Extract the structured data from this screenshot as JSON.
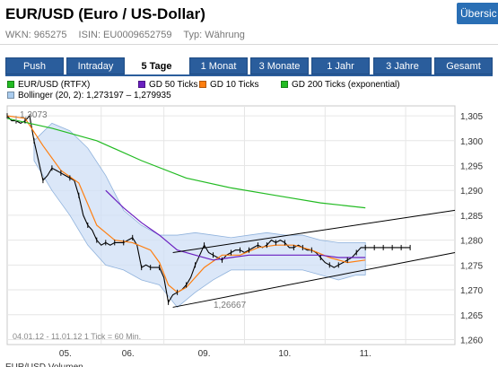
{
  "header": {
    "title": "EUR/USD (Euro / US-Dollar)",
    "overview_button": "Übersic",
    "wkn": "WKN: 965275",
    "isin": "ISIN: EU0009652759",
    "typ": "Typ: Währung"
  },
  "tabs": [
    "Push",
    "Intraday",
    "5 Tage",
    "1 Monat",
    "3 Monate",
    "1 Jahr",
    "3 Jahre",
    "Gesamt"
  ],
  "active_tab": "5 Tage",
  "legend": {
    "items": [
      {
        "label": "EUR/USD (RTFX)",
        "color": "#22bb22"
      },
      {
        "label": "GD 50 Ticks",
        "color": "#6a1fc0"
      },
      {
        "label": "GD 10 Ticks",
        "color": "#ff7f10"
      },
      {
        "label": "GD 200 Ticks (exponential)",
        "color": "#22bb22"
      },
      {
        "label": "Bollinger (20, 2): 1,273197 – 1,279935",
        "color": "#aaccee"
      }
    ]
  },
  "chart_data": {
    "type": "line",
    "xlabel": "",
    "ylabel": "",
    "x_ticks": [
      "05.",
      "06.",
      "09.",
      "10.",
      "11."
    ],
    "y_ticks": [
      "1,305",
      "1,300",
      "1,295",
      "1,290",
      "1,285",
      "1,280",
      "1,275",
      "1,270",
      "1,265",
      "1,260"
    ],
    "ylim": [
      1.259,
      1.307
    ],
    "annotations": {
      "high": "1,3073",
      "low": "1,26667",
      "date_range": "04.01.12 - 11.01.12",
      "tick_info": "1 Tick = 60 Min."
    },
    "bottom_label": "EUR/USD Volumen",
    "grid": true,
    "series": [
      {
        "name": "EUR/USD (RTFX)",
        "color": "#000000",
        "x": [
          0,
          1,
          2,
          3,
          4,
          5,
          6,
          7,
          8,
          9,
          10,
          11,
          12,
          13,
          14,
          15,
          16,
          17,
          18,
          19,
          20,
          21,
          22,
          23,
          24,
          25,
          26,
          27,
          28,
          29,
          30,
          31,
          32,
          33,
          34,
          35,
          36,
          37,
          38,
          39,
          40,
          41,
          42,
          43,
          44,
          45,
          46,
          47,
          48,
          49,
          50,
          51,
          52,
          53,
          54,
          55,
          56,
          57,
          58,
          59,
          60,
          61,
          62,
          63,
          64,
          65,
          66,
          67,
          68,
          69,
          70,
          71,
          72,
          73,
          74,
          75,
          76,
          77,
          78,
          79,
          80,
          81,
          82,
          83,
          84,
          85,
          86,
          87,
          88,
          89,
          90
        ],
        "values": [
          1.305,
          1.304,
          1.304,
          1.3035,
          1.304,
          1.305,
          1.3,
          1.296,
          1.292,
          1.293,
          1.2945,
          1.294,
          1.2935,
          1.293,
          1.2925,
          1.292,
          1.289,
          1.285,
          1.283,
          1.282,
          1.28,
          1.279,
          1.2795,
          1.279,
          1.2795,
          1.2795,
          1.2795,
          1.28,
          1.2805,
          1.279,
          1.2745,
          1.275,
          1.2745,
          1.2745,
          1.2745,
          1.2725,
          1.2675,
          1.269,
          1.2695,
          1.27,
          1.271,
          1.2725,
          1.275,
          1.277,
          1.279,
          1.2775,
          1.277,
          1.2765,
          1.276,
          1.277,
          1.2775,
          1.278,
          1.278,
          1.2775,
          1.278,
          1.2785,
          1.279,
          1.2785,
          1.279,
          1.28,
          1.2795,
          1.28,
          1.2795,
          1.2785,
          1.2785,
          1.279,
          1.2785,
          1.278,
          1.278,
          1.2775,
          1.2765,
          1.2755,
          1.275,
          1.2745,
          1.275,
          1.2755,
          1.276,
          1.2765,
          1.2775,
          1.2785,
          1.2785,
          1.2785,
          1.2785,
          1.2785,
          1.2785,
          1.2785,
          1.2785,
          1.2785,
          1.2785,
          1.2785,
          1.2785
        ]
      },
      {
        "name": "GD 10 Ticks",
        "color": "#ff7f10",
        "x": [
          0,
          4,
          8,
          12,
          16,
          20,
          24,
          28,
          32,
          34,
          36,
          38,
          40,
          44,
          48,
          52,
          56,
          60,
          64,
          68,
          72,
          76,
          80
        ],
        "values": [
          1.305,
          1.3045,
          1.299,
          1.294,
          1.2915,
          1.283,
          1.28,
          1.2795,
          1.278,
          1.2755,
          1.271,
          1.2695,
          1.2705,
          1.2745,
          1.277,
          1.277,
          1.2785,
          1.279,
          1.279,
          1.278,
          1.2765,
          1.2755,
          1.276
        ]
      },
      {
        "name": "GD 50 Ticks",
        "color": "#6a1fc0",
        "x": [
          22,
          26,
          30,
          34,
          38,
          42,
          46,
          50,
          54,
          58,
          62,
          66,
          70,
          74,
          78,
          80
        ],
        "values": [
          1.29,
          1.2865,
          1.2835,
          1.281,
          1.278,
          1.277,
          1.276,
          1.2765,
          1.277,
          1.277,
          1.277,
          1.277,
          1.277,
          1.2765,
          1.2765,
          1.2765
        ]
      },
      {
        "name": "GD 200 Ticks (exponential)",
        "color": "#22bb22",
        "x": [
          0,
          10,
          20,
          30,
          40,
          50,
          60,
          70,
          80
        ],
        "values": [
          1.3045,
          1.3025,
          1.3,
          1.296,
          1.2925,
          1.2905,
          1.289,
          1.2875,
          1.2865
        ]
      }
    ],
    "bollinger": {
      "name": "Bollinger (20, 2): 1,273197 – 1,279935",
      "color": "#aaccee",
      "x": [
        6,
        10,
        14,
        18,
        22,
        26,
        30,
        34,
        38,
        42,
        46,
        50,
        54,
        58,
        62,
        66,
        70,
        74,
        78,
        80
      ],
      "upper": [
        1.3,
        1.3035,
        1.302,
        1.2985,
        1.293,
        1.286,
        1.283,
        1.281,
        1.281,
        1.2815,
        1.281,
        1.2805,
        1.281,
        1.2815,
        1.281,
        1.281,
        1.28,
        1.2795,
        1.2795,
        1.2795
      ],
      "lower": [
        1.296,
        1.29,
        1.285,
        1.279,
        1.275,
        1.274,
        1.272,
        1.271,
        1.2665,
        1.2695,
        1.272,
        1.274,
        1.274,
        1.274,
        1.274,
        1.274,
        1.273,
        1.272,
        1.273,
        1.273
      ]
    },
    "channel_lines": [
      {
        "x": [
          37,
          100
        ],
        "values": [
          1.2775,
          1.286
        ]
      },
      {
        "x": [
          37,
          100
        ],
        "values": [
          1.2665,
          1.2775
        ]
      }
    ]
  }
}
